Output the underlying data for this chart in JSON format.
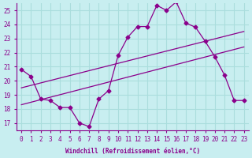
{
  "xlabel": "Windchill (Refroidissement éolien,°C)",
  "bg_color": "#c8eef0",
  "grid_color": "#aadddd",
  "line_color": "#8B008B",
  "x_ticks": [
    0,
    1,
    2,
    3,
    4,
    5,
    6,
    7,
    8,
    9,
    10,
    11,
    12,
    13,
    14,
    15,
    16,
    17,
    18,
    19,
    20,
    21,
    22,
    23
  ],
  "y_ticks": [
    17,
    18,
    19,
    20,
    21,
    22,
    23,
    24,
    25
  ],
  "ylim": [
    16.5,
    25.5
  ],
  "xlim": [
    -0.5,
    23.5
  ],
  "data_x": [
    0,
    1,
    2,
    3,
    4,
    5,
    6,
    7,
    8,
    9,
    10,
    11,
    12,
    13,
    14,
    15,
    16,
    17,
    18,
    19,
    20,
    21,
    22,
    23
  ],
  "data_y": [
    20.8,
    20.3,
    18.7,
    18.6,
    18.1,
    18.1,
    17.0,
    16.75,
    18.7,
    19.3,
    21.8,
    23.1,
    23.85,
    23.85,
    25.35,
    25.0,
    25.6,
    24.1,
    23.8,
    22.8,
    21.7,
    20.4,
    18.6,
    18.6
  ],
  "trend1_x": [
    0,
    23
  ],
  "trend1_y": [
    19.5,
    23.5
  ],
  "trend2_x": [
    0,
    23
  ],
  "trend2_y": [
    18.3,
    22.4
  ]
}
